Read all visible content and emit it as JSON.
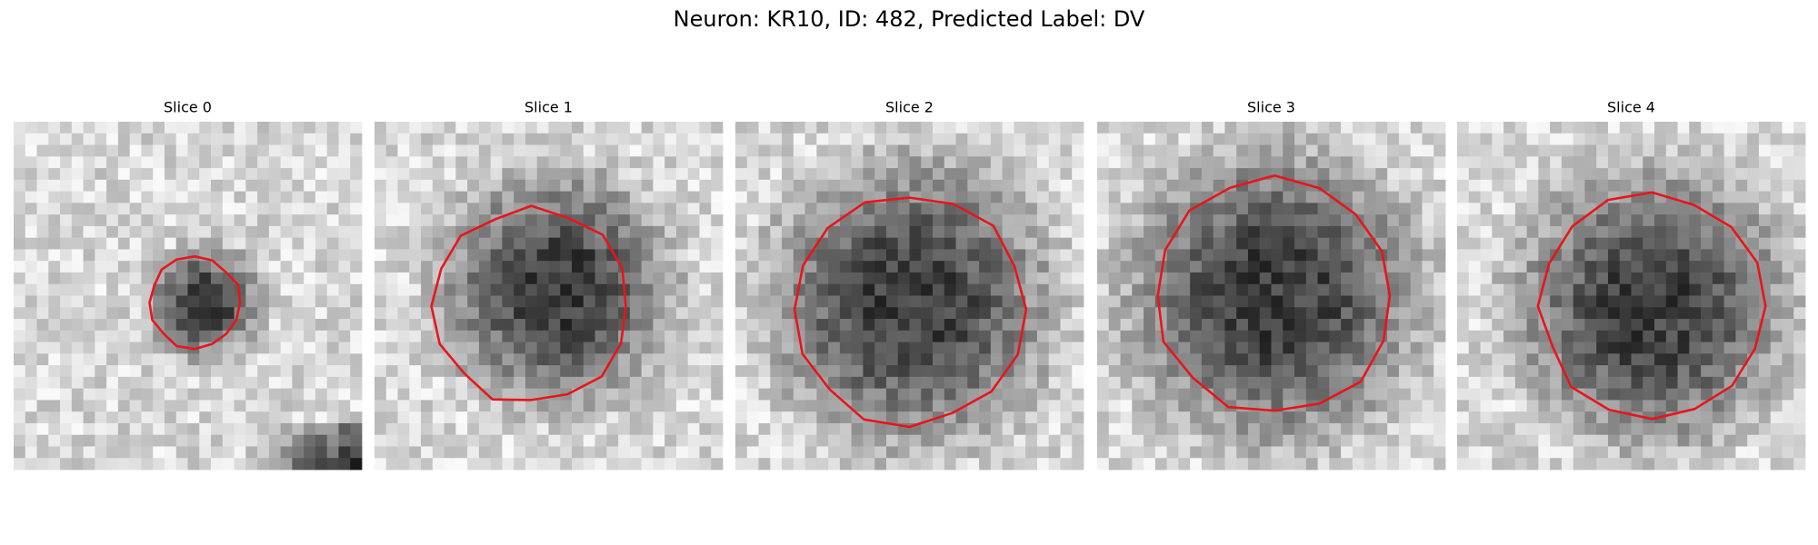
{
  "header": {
    "title": "Neuron: KR10, ID: 482, Predicted Label: DV"
  },
  "panels": [
    {
      "title": "Slice 0"
    },
    {
      "title": "Slice 1"
    },
    {
      "title": "Slice 2"
    },
    {
      "title": "Slice 3"
    },
    {
      "title": "Slice 4"
    }
  ]
}
